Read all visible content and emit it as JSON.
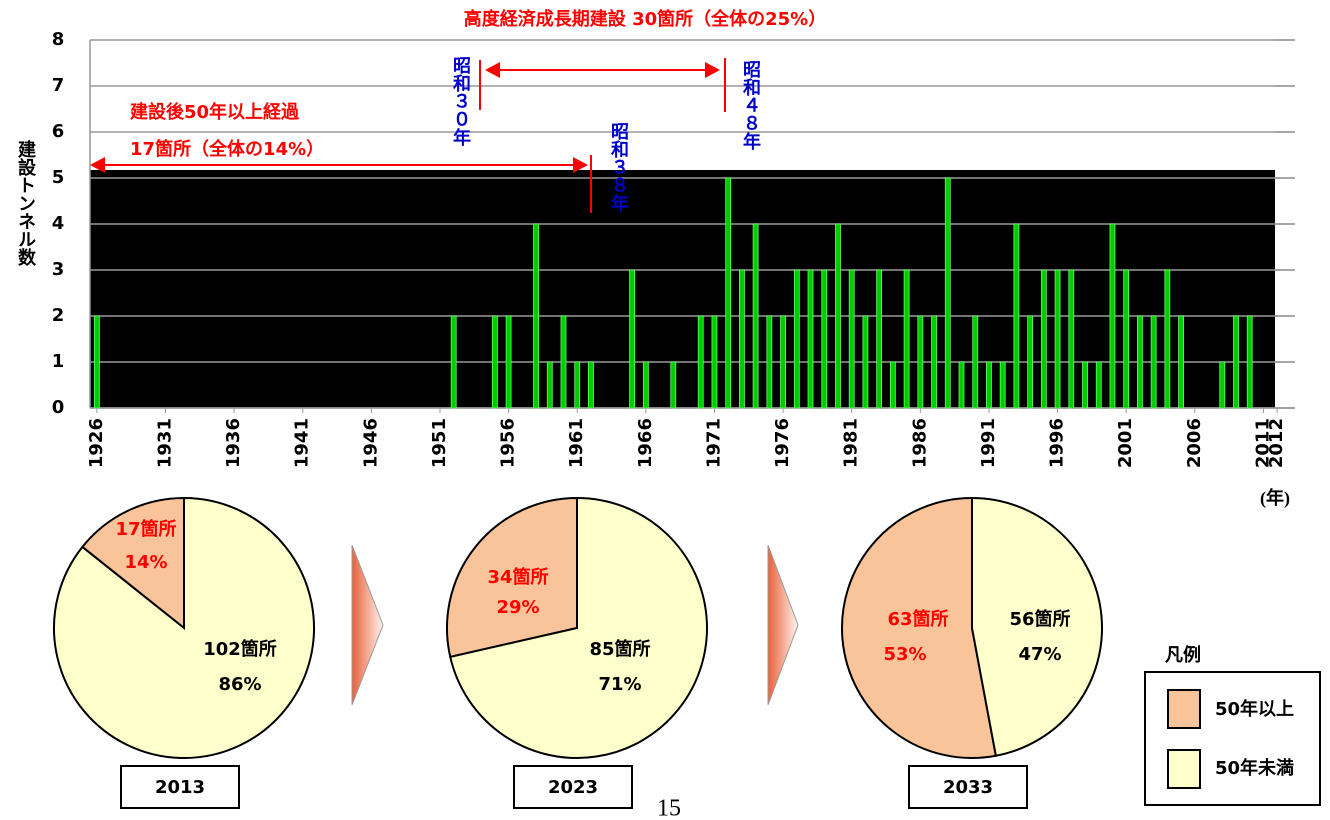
{
  "chart_data": [
    {
      "type": "bar",
      "title": "高度経済成長期建設 30箇所（全体の25%）",
      "y_label": "建設トンネル数",
      "x_unit": "(年)",
      "annotations": [
        "建設後50年以上経過",
        "17箇所（全体の14%）",
        "昭和３０年",
        "昭和３８年",
        "昭和４８年"
      ],
      "x": [
        1926,
        1952,
        1955,
        1956,
        1958,
        1959,
        1960,
        1961,
        1962,
        1965,
        1966,
        1968,
        1970,
        1971,
        1972,
        1973,
        1974,
        1975,
        1976,
        1977,
        1978,
        1979,
        1980,
        1981,
        1982,
        1983,
        1984,
        1985,
        1986,
        1987,
        1988,
        1989,
        1990,
        1991,
        1992,
        1993,
        1994,
        1995,
        1996,
        1997,
        1998,
        1999,
        2000,
        2001,
        2002,
        2003,
        2004,
        2005,
        2008,
        2009,
        2010
      ],
      "values": [
        2,
        2,
        2,
        2,
        4,
        1,
        2,
        1,
        1,
        3,
        1,
        1,
        2,
        2,
        5,
        3,
        4,
        2,
        2,
        3,
        3,
        3,
        4,
        3,
        2,
        3,
        1,
        3,
        2,
        2,
        5,
        1,
        2,
        1,
        1,
        4,
        2,
        3,
        3,
        3,
        1,
        1,
        4,
        3,
        2,
        2,
        3,
        2,
        1,
        2,
        2
      ],
      "color": "#00cc00",
      "xlim": [
        1925.5,
        2013.3
      ],
      "xticks": [
        1926,
        1931,
        1936,
        1941,
        1946,
        1951,
        1956,
        1961,
        1966,
        1971,
        1976,
        1981,
        1986,
        1991,
        1996,
        2001,
        2006,
        2011,
        2012
      ],
      "ylim": [
        0,
        8
      ],
      "yticks": [
        0,
        1,
        2,
        3,
        4,
        5,
        6,
        7,
        8
      ],
      "grid": true
    },
    {
      "type": "pie",
      "title": "2013",
      "categories": [
        "50年以上",
        "50年未満"
      ],
      "values": [
        17,
        102
      ],
      "value_labels": [
        "17箇所",
        "102箇所"
      ],
      "percent_labels": [
        "14%",
        "86%"
      ],
      "colors": [
        "#f9c49a",
        "#ffffcc"
      ]
    },
    {
      "type": "pie",
      "title": "2023",
      "categories": [
        "50年以上",
        "50年未満"
      ],
      "values": [
        34,
        85
      ],
      "value_labels": [
        "34箇所",
        "85箇所"
      ],
      "percent_labels": [
        "29%",
        "71%"
      ],
      "colors": [
        "#f9c49a",
        "#ffffcc"
      ]
    },
    {
      "type": "pie",
      "title": "2033",
      "categories": [
        "50年以上",
        "50年未満"
      ],
      "values": [
        63,
        56
      ],
      "value_labels": [
        "63箇所",
        "56箇所"
      ],
      "percent_labels": [
        "53%",
        "47%"
      ],
      "colors": [
        "#f9c49a",
        "#ffffcc"
      ]
    }
  ],
  "legend_title": "凡例",
  "page_number": "15"
}
